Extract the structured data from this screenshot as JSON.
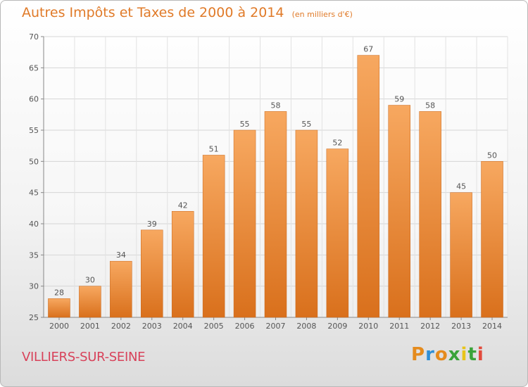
{
  "header": {
    "title": "Autres Impôts et Taxes de 2000 à 2014",
    "unit": "(en milliers d'€)"
  },
  "footer": {
    "commune": "VILLIERS-SUR-SEINE",
    "brand": "Proxiti"
  },
  "colors": {
    "accent": "#e07a28",
    "commune_text": "#d8425a",
    "bar_top": "#f7a860",
    "bar_bottom": "#d9701c",
    "brand_letters": [
      "#e58b1d",
      "#2f8fd6",
      "#e58b1d",
      "#3aa33a",
      "#e8c41a",
      "#3aa33a",
      "#e24a3c"
    ]
  },
  "chart_data": {
    "type": "bar",
    "title": "Autres Impôts et Taxes de 2000 à 2014",
    "subtitle": "(en milliers d'€)",
    "categories": [
      "2000",
      "2001",
      "2002",
      "2003",
      "2004",
      "2005",
      "2006",
      "2007",
      "2008",
      "2009",
      "2010",
      "2011",
      "2012",
      "2013",
      "2014"
    ],
    "values": [
      28,
      30,
      34,
      39,
      42,
      51,
      55,
      58,
      55,
      52,
      67,
      59,
      58,
      45,
      50
    ],
    "ylim": [
      25,
      70
    ],
    "yticks": [
      25,
      30,
      35,
      40,
      45,
      50,
      55,
      60,
      65,
      70
    ],
    "grid": true,
    "legend": "none"
  }
}
